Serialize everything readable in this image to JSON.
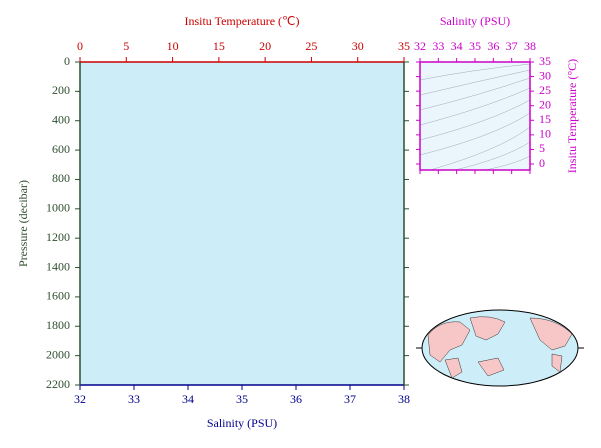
{
  "chart_data": [
    {
      "type": "profile",
      "xlabel": "Salinity (PSU)",
      "x2label": "Insitu Temperature (℃)",
      "ylabel": "Pressure (decibar)",
      "xlim": [
        32,
        38
      ],
      "xticks": [
        32,
        33,
        34,
        35,
        36,
        37,
        38
      ],
      "x2lim": [
        0,
        35
      ],
      "x2ticks": [
        0,
        5,
        10,
        15,
        20,
        25,
        30,
        35
      ],
      "ylim": [
        0,
        2200
      ],
      "yticks": [
        0,
        200,
        400,
        600,
        800,
        1000,
        1200,
        1400,
        1600,
        1800,
        2000,
        2200
      ],
      "y_inverted": true,
      "background": "#cdeef8"
    },
    {
      "type": "ts",
      "xlabel": "Salinity (PSU)",
      "ylabel": "Insitu Temperature (°C)",
      "xlim": [
        32,
        38
      ],
      "xticks": [
        32,
        33,
        34,
        35,
        36,
        37,
        38
      ],
      "ylim": [
        0,
        35
      ],
      "yticks": [
        0,
        5,
        10,
        15,
        20,
        25,
        30,
        35
      ],
      "background": "#eaf6fc"
    }
  ]
}
